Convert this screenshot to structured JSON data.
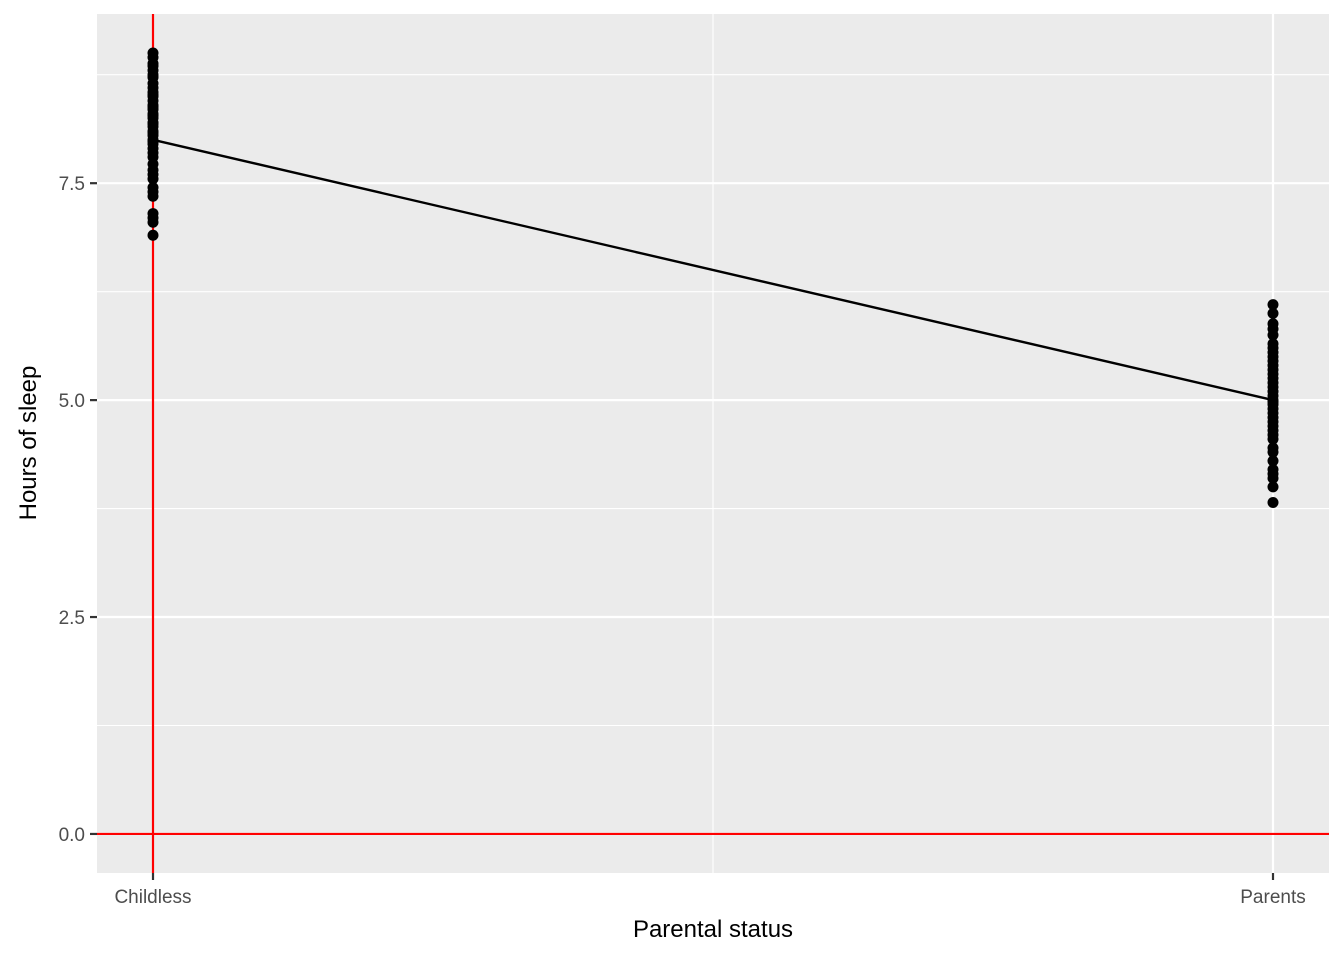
{
  "chart_data": {
    "type": "scatter",
    "title": "",
    "xlabel": "Parental status",
    "ylabel": "Hours of sleep",
    "categories": [
      "Childless",
      "Parents"
    ],
    "ylim": [
      -0.45,
      9.45
    ],
    "y_ticks": [
      0.0,
      2.5,
      5.0,
      7.5
    ],
    "y_tick_labels": [
      "0.0",
      "2.5",
      "5.0",
      "7.5"
    ],
    "grid": true,
    "panel_background": "#ebebeb",
    "points": {
      "Childless": [
        9.0,
        8.95,
        8.88,
        8.85,
        8.8,
        8.75,
        8.72,
        8.65,
        8.6,
        8.55,
        8.52,
        8.5,
        8.45,
        8.4,
        8.38,
        8.35,
        8.3,
        8.28,
        8.25,
        8.2,
        8.18,
        8.15,
        8.1,
        8.08,
        8.05,
        8.0,
        7.98,
        7.95,
        7.9,
        7.85,
        7.8,
        7.72,
        7.65,
        7.6,
        7.55,
        7.45,
        7.4,
        7.35,
        7.15,
        7.1,
        7.05,
        6.9
      ],
      "Parents": [
        6.1,
        6.0,
        5.88,
        5.82,
        5.75,
        5.65,
        5.6,
        5.55,
        5.5,
        5.45,
        5.4,
        5.35,
        5.3,
        5.25,
        5.2,
        5.15,
        5.1,
        5.05,
        5.0,
        4.98,
        4.95,
        4.9,
        4.85,
        4.8,
        4.75,
        4.7,
        4.65,
        4.6,
        4.55,
        4.45,
        4.4,
        4.3,
        4.2,
        4.15,
        4.1,
        4.0,
        3.82
      ]
    },
    "trend_line": {
      "Childless": 8.0,
      "Parents": 5.0
    },
    "reference_lines": {
      "vertical_at": "Childless",
      "horizontal_at": 0.0,
      "color": "#ff0000"
    },
    "point_color": "#000000",
    "line_color": "#000000"
  }
}
